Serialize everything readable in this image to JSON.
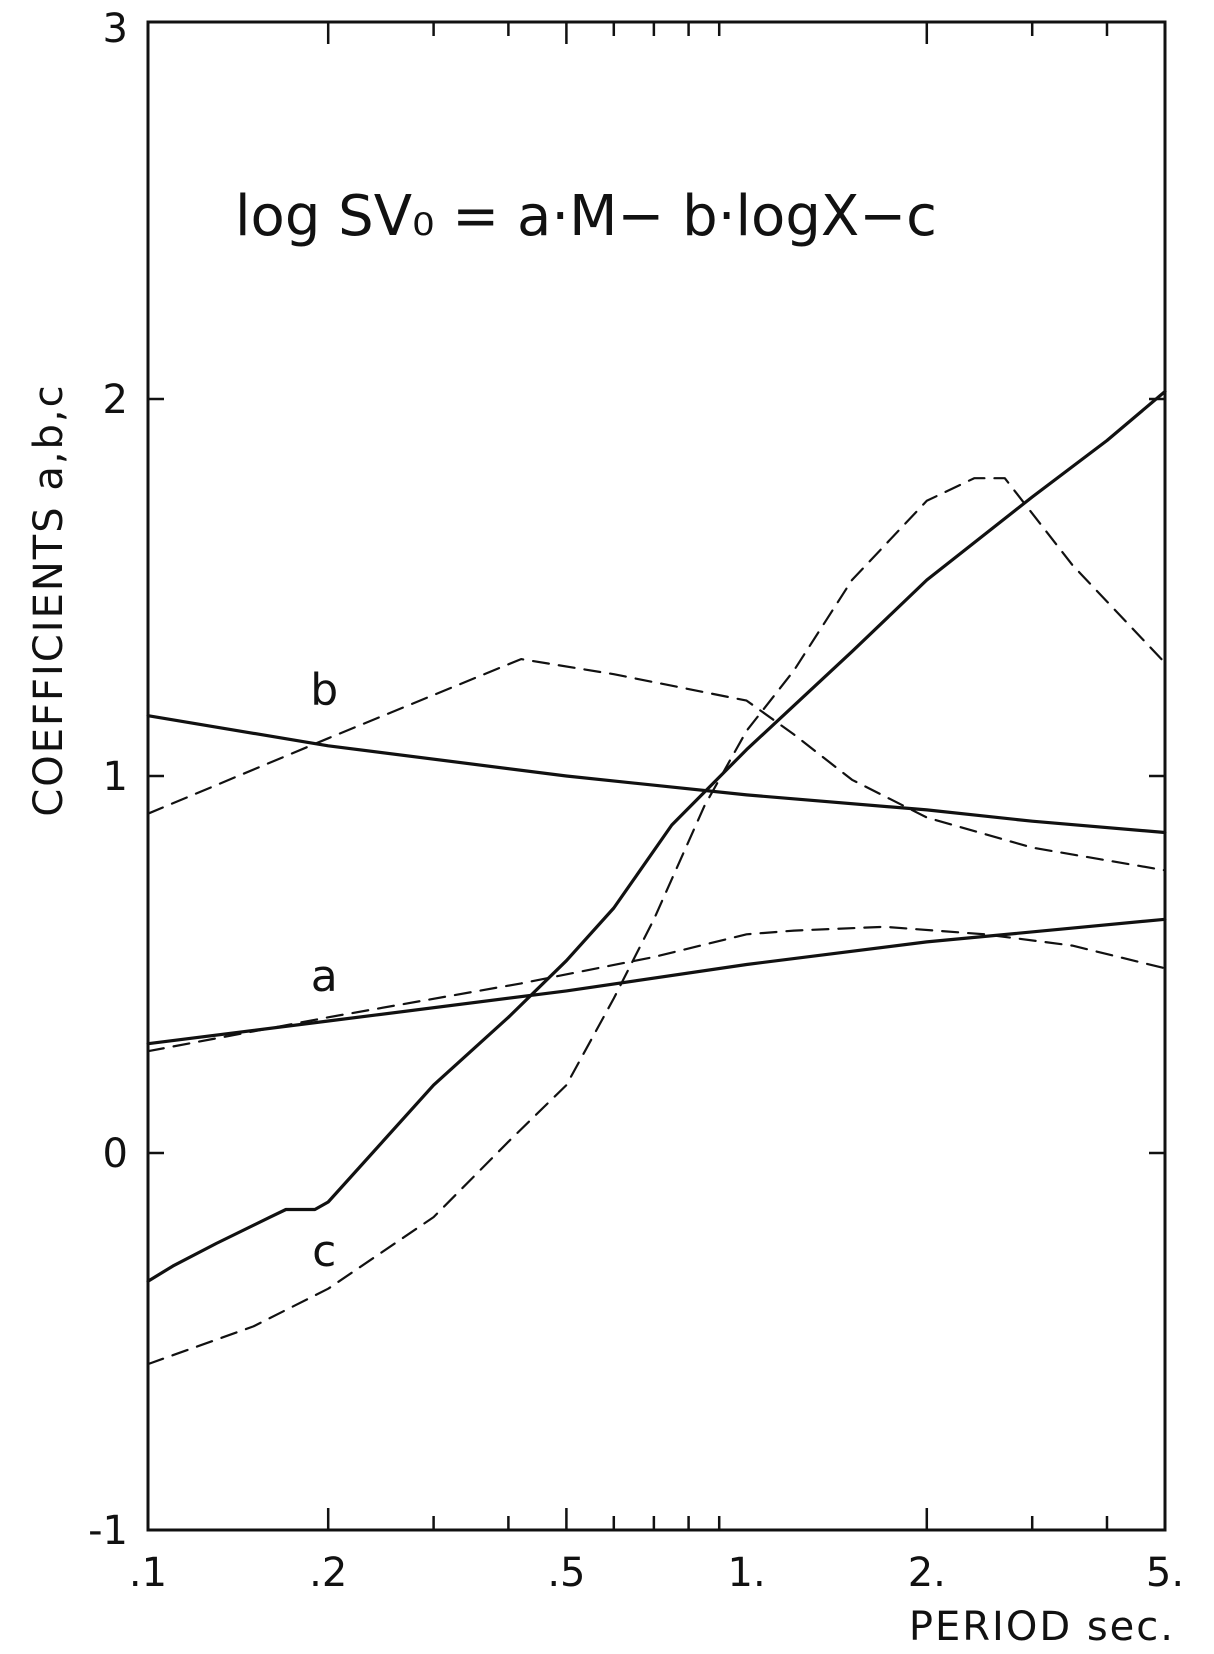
{
  "chart_data": {
    "type": "line",
    "annotation": "log SV₀ = a·M− b·logX−c",
    "xlabel": "PERIOD sec.",
    "ylabel": "COEFFICIENTS a,b,c",
    "xscale": "log",
    "xlim": [
      0.1,
      5.0
    ],
    "ylim": [
      -1,
      3
    ],
    "xticks": [
      {
        "value": 0.1,
        "label": ".1"
      },
      {
        "value": 0.2,
        "label": ".2"
      },
      {
        "value": 0.5,
        "label": ".5"
      },
      {
        "value": 1.0,
        "label": "1."
      },
      {
        "value": 2.0,
        "label": "2."
      },
      {
        "value": 5.0,
        "label": "5."
      }
    ],
    "yticks": [
      {
        "value": -1,
        "label": "-1"
      },
      {
        "value": 0,
        "label": "0"
      },
      {
        "value": 1,
        "label": "1"
      },
      {
        "value": 2,
        "label": "2"
      },
      {
        "value": 3,
        "label": "3"
      }
    ],
    "grid": false,
    "series": [
      {
        "label": "a",
        "style": "solid",
        "x": [
          0.1,
          0.2,
          0.5,
          1.0,
          2.0,
          5.0
        ],
        "y": [
          0.29,
          0.35,
          0.43,
          0.5,
          0.56,
          0.62
        ]
      },
      {
        "label": "a",
        "style": "dashed",
        "x": [
          0.1,
          0.2,
          0.42,
          0.7,
          1.0,
          1.2,
          1.7,
          2.5,
          3.5,
          5.0
        ],
        "y": [
          0.27,
          0.36,
          0.45,
          0.52,
          0.58,
          0.59,
          0.6,
          0.58,
          0.55,
          0.49
        ]
      },
      {
        "label": "b",
        "style": "solid",
        "x": [
          0.1,
          0.2,
          0.5,
          1.0,
          2.0,
          3.0,
          5.0
        ],
        "y": [
          1.16,
          1.08,
          1.0,
          0.95,
          0.91,
          0.88,
          0.85
        ]
      },
      {
        "label": "b",
        "style": "dashed",
        "x": [
          0.1,
          0.2,
          0.42,
          0.6,
          1.0,
          1.2,
          1.5,
          2.0,
          3.0,
          5.0
        ],
        "y": [
          0.9,
          1.1,
          1.31,
          1.27,
          1.2,
          1.11,
          0.99,
          0.89,
          0.81,
          0.75
        ]
      },
      {
        "label": "c",
        "style": "solid",
        "x": [
          0.1,
          0.11,
          0.13,
          0.16,
          0.17,
          0.19,
          0.2,
          0.3,
          0.4,
          0.5,
          0.6,
          0.75,
          1.0,
          1.5,
          2.0,
          3.0,
          4.0,
          5.0
        ],
        "y": [
          -0.34,
          -0.3,
          -0.24,
          -0.17,
          -0.15,
          -0.15,
          -0.13,
          0.18,
          0.36,
          0.51,
          0.65,
          0.87,
          1.07,
          1.33,
          1.52,
          1.74,
          1.89,
          2.02
        ]
      },
      {
        "label": "c",
        "style": "dashed",
        "x": [
          0.1,
          0.15,
          0.2,
          0.3,
          0.4,
          0.5,
          0.6,
          0.7,
          0.85,
          1.0,
          1.2,
          1.5,
          2.0,
          2.4,
          2.7,
          3.5,
          5.0
        ],
        "y": [
          -0.56,
          -0.46,
          -0.36,
          -0.17,
          0.03,
          0.18,
          0.41,
          0.62,
          0.92,
          1.12,
          1.28,
          1.52,
          1.73,
          1.79,
          1.79,
          1.56,
          1.3
        ]
      }
    ]
  }
}
